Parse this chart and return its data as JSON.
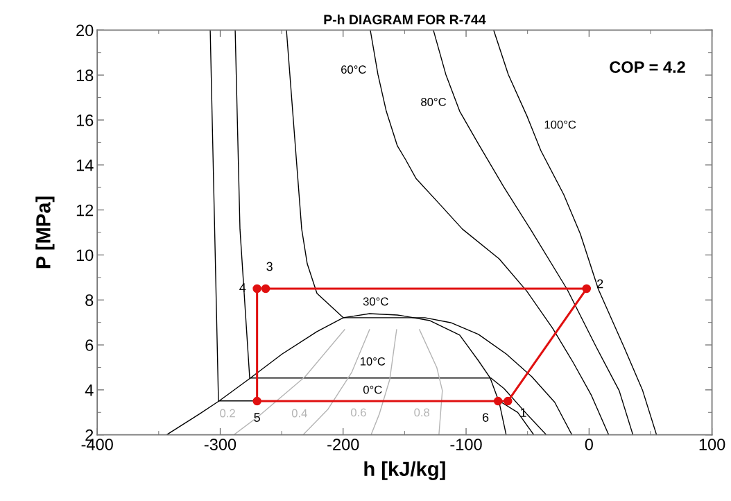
{
  "chart_data": {
    "type": "line",
    "title": "P-h DIAGRAM FOR R-744",
    "xlabel": "h [kJ/kg]",
    "ylabel": "P [MPa]",
    "xlim": [
      -400,
      100
    ],
    "xticks": [
      -400,
      -300,
      -200,
      -100,
      0,
      100
    ],
    "ylim": [
      2,
      20
    ],
    "yticks": [
      2,
      4,
      6,
      8,
      10,
      12,
      14,
      16,
      18,
      20
    ],
    "grid": false,
    "marker": "none",
    "line_style": "solid",
    "series": [
      {
        "color": "#000000",
        "x": [
          -343.6,
          -317.1,
          -300.8,
          -275.4,
          -249.5,
          -221.3,
          -199.9,
          -178.5,
          -155.9,
          -152.4,
          -129.4,
          -105.2,
          -90.0,
          -80.4,
          -73.1,
          -67.4
        ],
        "values": [
          2,
          2.92,
          3.51,
          4.53,
          5.6,
          6.59,
          7.21,
          7.39,
          7.33,
          7.3,
          7.08,
          6.44,
          5.3,
          4.53,
          3.45,
          2
        ]
      },
      {
        "color": "#000000",
        "x": [
          -308.1,
          -301.4,
          -73.1,
          -58,
          -44.9
        ],
        "values": [
          20,
          3.51,
          3.51,
          3.0,
          2
        ]
      },
      {
        "color": "#000000",
        "x": [
          -287.8,
          -283.9,
          -276,
          -79.8,
          -69.1,
          -50.5,
          -34.7
        ],
        "values": [
          20,
          11.15,
          4.53,
          4.53,
          4.06,
          2.92,
          2
        ]
      },
      {
        "color": "#000000",
        "x": [
          -246.1,
          -233.7,
          -229.2,
          -221.3,
          -199.9,
          -133.4,
          -112.5,
          -89.9,
          -67.4,
          -46.6,
          -27.9,
          -13.9
        ],
        "values": [
          20,
          11.15,
          9.61,
          8.29,
          7.21,
          7.21,
          6.99,
          6.47,
          5.6,
          4.59,
          3.45,
          2
        ]
      },
      {
        "color": "#000000",
        "x": [
          -177.9,
          -171.7,
          -164.9,
          -155.9,
          -149.2,
          -140.7,
          -121.0,
          -103.0,
          -73.1,
          -50.5,
          -29.6,
          -12.7,
          1.9,
          16.0
        ],
        "values": [
          20,
          18.03,
          16.39,
          14.85,
          14.24,
          13.4,
          12.23,
          11.15,
          9.83,
          8.38,
          6.74,
          5.2,
          3.76,
          2
        ]
      },
      {
        "color": "#000000",
        "x": [
          -126.6,
          -116.5,
          -105.2,
          -90.0,
          -69.1,
          -47.7,
          -17.8,
          5.9,
          24.5,
          35.7
        ],
        "values": [
          20,
          18.03,
          16.39,
          14.94,
          13.0,
          11.15,
          8.47,
          5.9,
          3.97,
          2
        ]
      },
      {
        "color": "#000000",
        "x": [
          -77.6,
          -65.7,
          -50.5,
          -39.2,
          -20.6,
          -7.1,
          7.6,
          28.4,
          43.6,
          54.9
        ],
        "values": [
          20,
          18.03,
          16.18,
          14.64,
          12.69,
          10.94,
          8.47,
          5.91,
          3.97,
          2
        ]
      },
      {
        "color": "#b4b4b4",
        "x": [
          -198.8,
          -230.9,
          -268.7,
          -288.9
        ],
        "values": [
          6.68,
          4.59,
          2.83,
          2
        ]
      },
      {
        "color": "#b4b4b4",
        "x": [
          -178.5,
          -193.1,
          -212.3,
          -232.6
        ],
        "values": [
          6.68,
          4.77,
          3.14,
          2
        ]
      },
      {
        "color": "#b4b4b4",
        "x": [
          -156.5,
          -162.1,
          -170.6,
          -177.3
        ],
        "values": [
          6.68,
          4.46,
          2.92,
          2
        ]
      },
      {
        "color": "#b4b4b4",
        "x": [
          -137.9,
          -123.8,
          -119.3,
          -122.1
        ],
        "values": [
          6.68,
          4.99,
          3.97,
          2
        ]
      },
      {
        "color": "#e01010",
        "marker": "circle",
        "x": [
          -263,
          -2,
          -66,
          -74,
          -270,
          -270
        ],
        "values": [
          8.5,
          8.5,
          3.5,
          3.5,
          3.5,
          8.5
        ]
      }
    ],
    "annotations": [
      "COP = 4.2",
      "60°C",
      "80°C",
      "100°C",
      "30°C",
      "10°C",
      "0°C",
      "0.2",
      "0.4",
      "0.6",
      "0.8",
      {
        "text": "1",
        "x": -66,
        "y": 3.5
      },
      {
        "text": "2",
        "x": -2,
        "y": 8.5
      },
      {
        "text": "3",
        "x": -263,
        "y": 8.5
      },
      {
        "text": "4",
        "x": -270,
        "y": 8.5
      },
      {
        "text": "5",
        "x": -270,
        "y": 3.5
      },
      {
        "text": "6",
        "x": -74,
        "y": 3.5
      }
    ]
  }
}
